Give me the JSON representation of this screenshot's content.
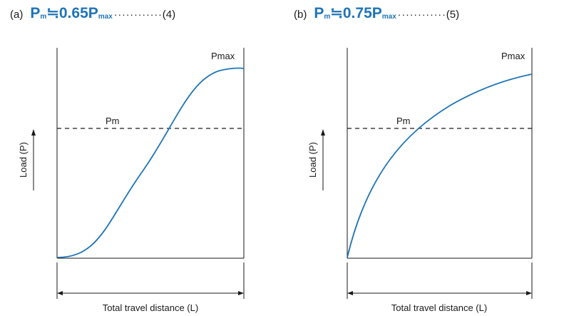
{
  "panels": [
    {
      "tag": "(a)",
      "formula_p": "P",
      "formula_m": "m",
      "formula_rel": "≒0.65P",
      "formula_max": "max",
      "leader": "············",
      "equation_no": "(4)",
      "curve_label": "Pmax",
      "pm_label": "Pm",
      "y_axis_label": "Load (P)",
      "x_axis_label": "Total travel distance (L)",
      "curve_shape": "s-curve",
      "pm_ratio": 0.65
    },
    {
      "tag": "(b)",
      "formula_p": "P",
      "formula_m": "m",
      "formula_rel": "≒0.75P",
      "formula_max": "max",
      "leader": "············",
      "equation_no": "(5)",
      "curve_label": "Pmax",
      "pm_label": "Pm",
      "y_axis_label": "Load (P)",
      "x_axis_label": "Total travel distance (L)",
      "curve_shape": "concave",
      "pm_ratio": 0.75
    }
  ],
  "colors": {
    "curve": "#1f74b8",
    "heading": "#1f74b8",
    "ink": "#1a1a1a"
  }
}
